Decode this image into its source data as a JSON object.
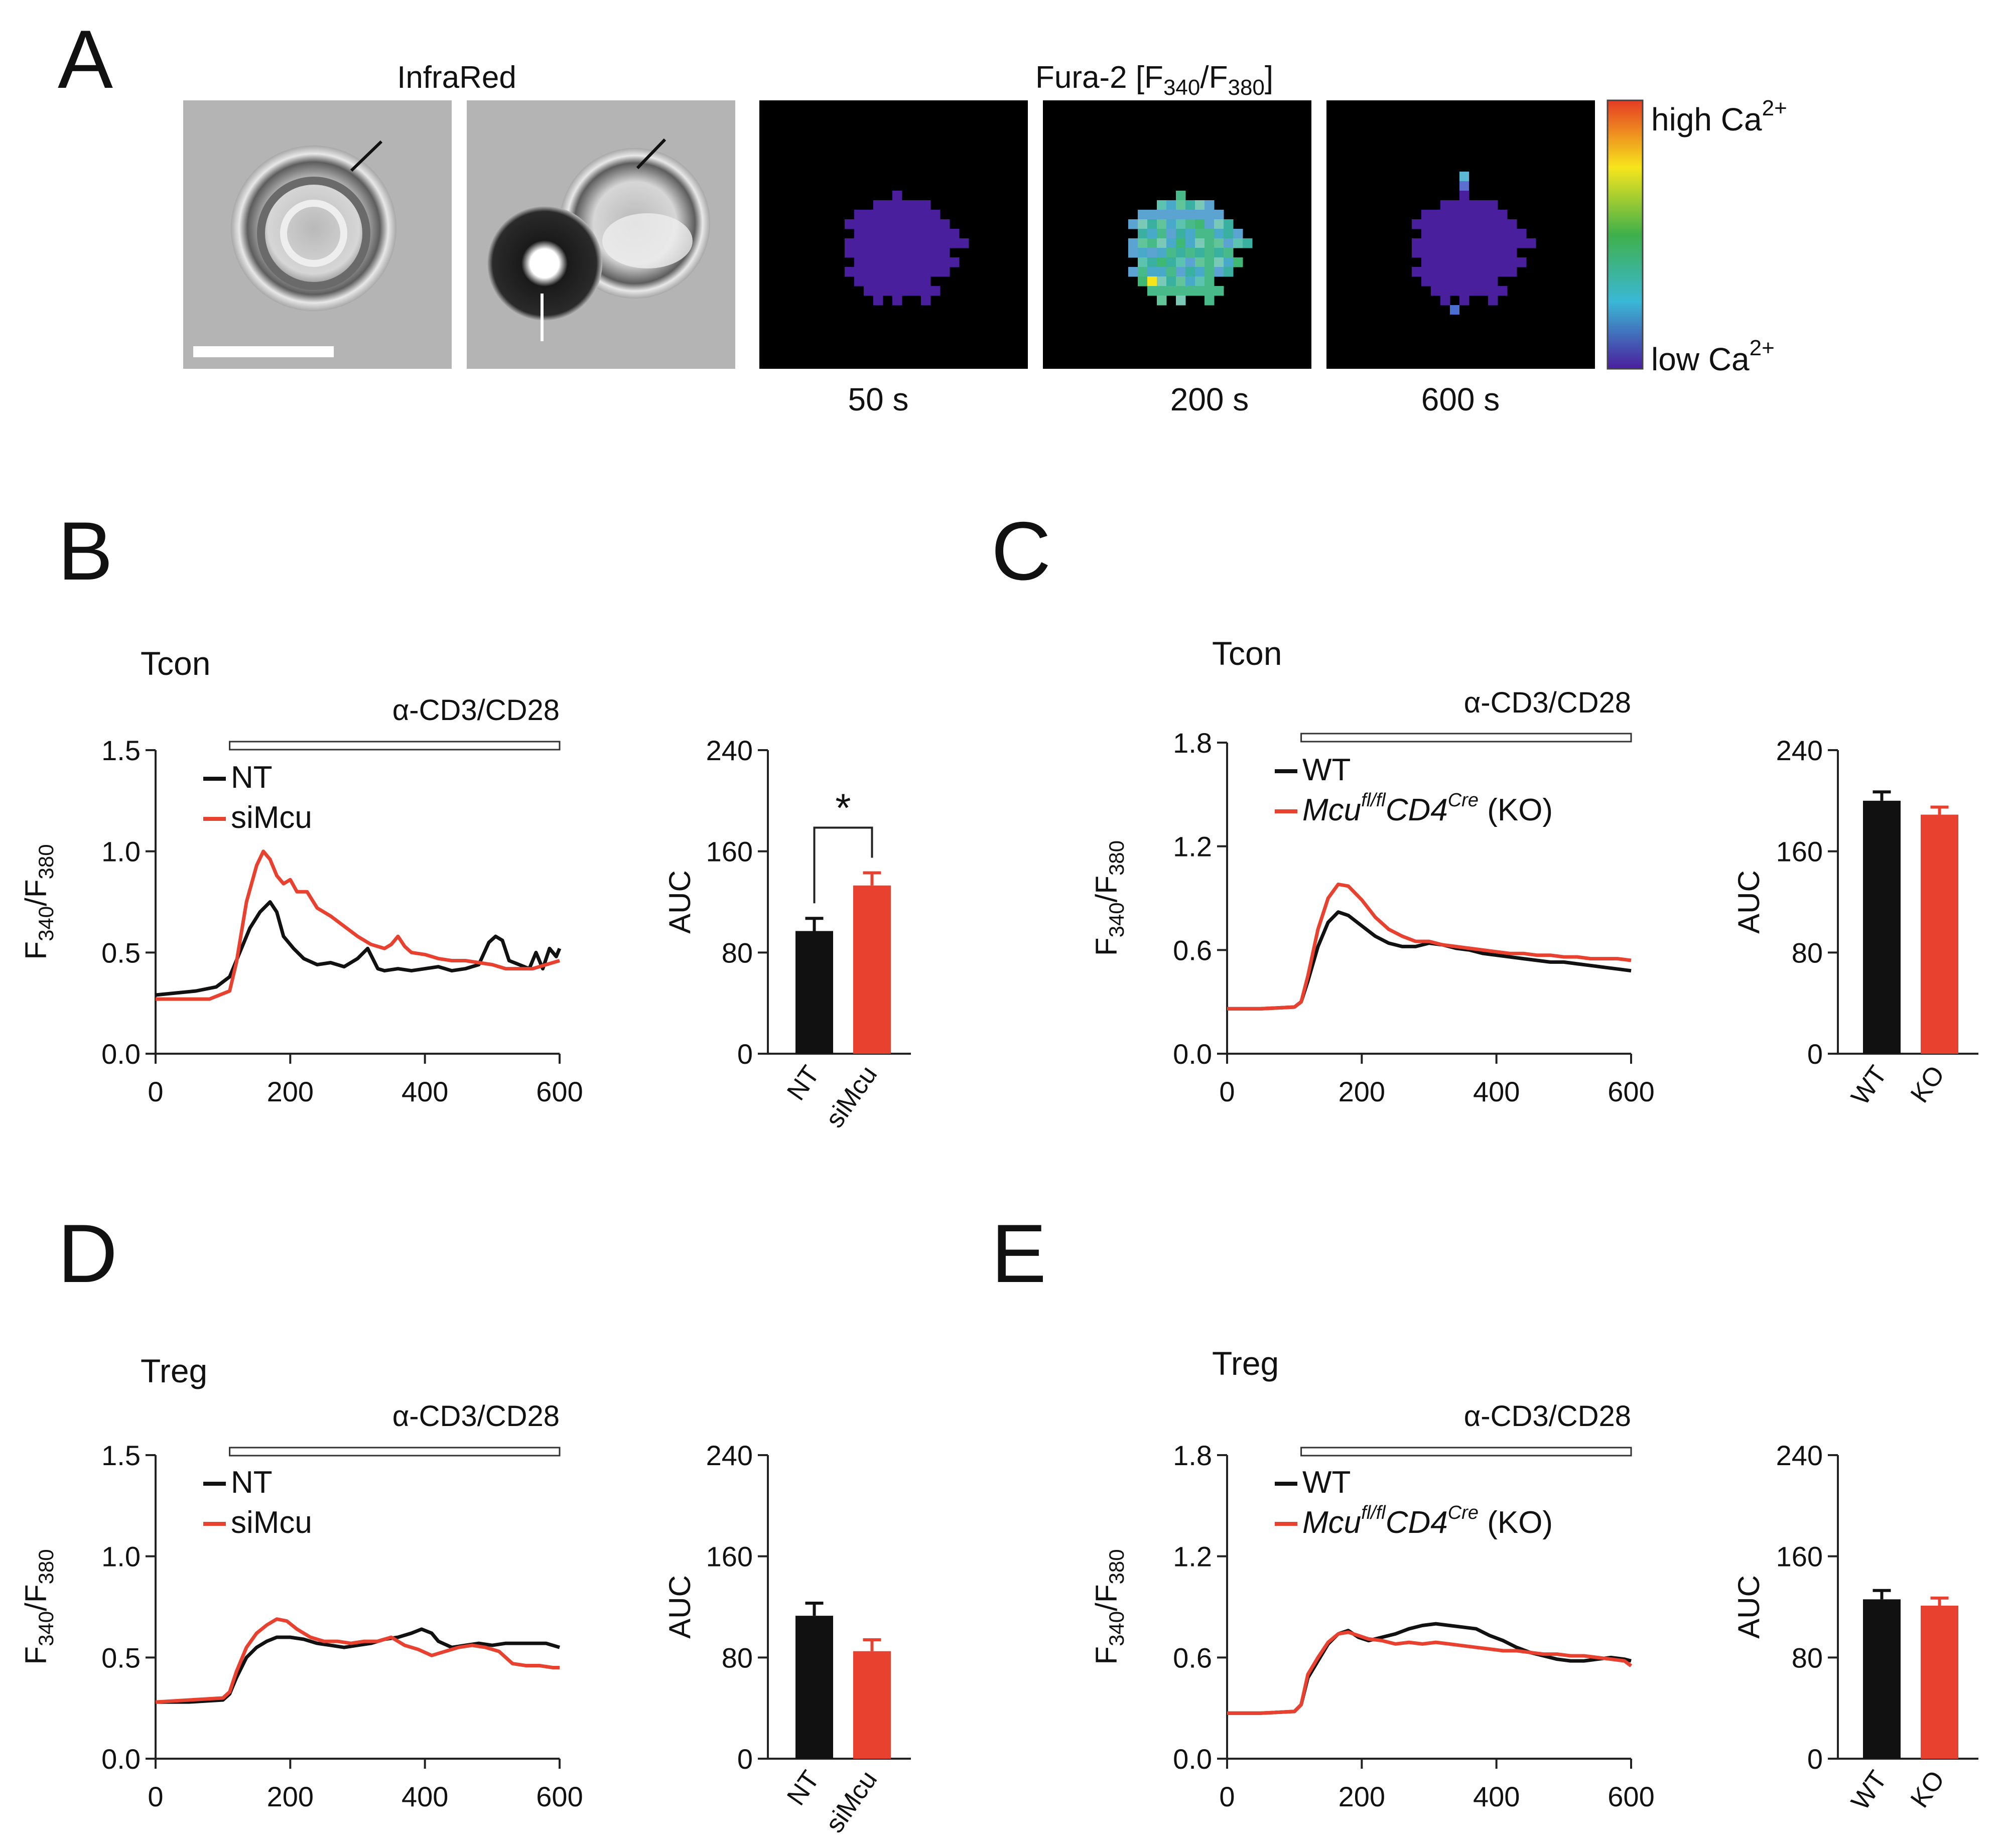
{
  "panel_a": {
    "letter": "A",
    "ir_title": "InfraRed",
    "fura_title": "Fura-2 [F",
    "fura_sub1": "340",
    "fura_slash": "/F",
    "fura_sub2": "380",
    "fura_close": "]",
    "times": [
      "50 s",
      "200 s",
      "600 s"
    ],
    "colorbar": {
      "high": "high Ca",
      "low": "low Ca",
      "sup": "2+"
    },
    "colors": {
      "purple": "#4a1f9e",
      "colorbar": [
        "#e53b24",
        "#f7e51c",
        "#3fb04a",
        "#3ab8d6",
        "#4a1f9e"
      ]
    }
  },
  "common": {
    "stim_label": "α-CD3/CD28",
    "ylabel_main": "F",
    "ylabel_sub1": "340",
    "ylabel_slash": "/F",
    "ylabel_sub2": "380",
    "auc_label": "AUC",
    "colors": {
      "control": "#111111",
      "treatment": "#e8412f"
    }
  },
  "chart_data": [
    {
      "id": "B-trace",
      "panel_letter": "B",
      "type": "line",
      "title": "Tcon",
      "xlim": [
        0,
        600
      ],
      "ylim": [
        0,
        1.5
      ],
      "xticks": [
        0,
        200,
        400,
        600
      ],
      "yticks": [
        "0.0",
        "0.5",
        "1.0",
        "1.5"
      ],
      "stimulus": {
        "label": "α-CD3/CD28",
        "start": 110,
        "end": 600
      },
      "legend": [
        {
          "label": "NT"
        },
        {
          "label": "siMcu"
        }
      ],
      "series": [
        {
          "name": "NT",
          "x": [
            0,
            30,
            60,
            90,
            110,
            125,
            140,
            155,
            170,
            180,
            190,
            205,
            220,
            240,
            260,
            280,
            300,
            315,
            330,
            340,
            360,
            380,
            400,
            420,
            440,
            460,
            480,
            495,
            505,
            515,
            525,
            540,
            555,
            565,
            575,
            585,
            595,
            600
          ],
          "y": [
            0.29,
            0.3,
            0.31,
            0.33,
            0.38,
            0.5,
            0.62,
            0.7,
            0.75,
            0.7,
            0.58,
            0.52,
            0.47,
            0.44,
            0.45,
            0.43,
            0.47,
            0.52,
            0.42,
            0.41,
            0.42,
            0.41,
            0.42,
            0.43,
            0.41,
            0.42,
            0.44,
            0.55,
            0.58,
            0.56,
            0.46,
            0.44,
            0.42,
            0.5,
            0.42,
            0.52,
            0.48,
            0.52
          ]
        },
        {
          "name": "siMcu",
          "x": [
            0,
            40,
            80,
            110,
            120,
            135,
            150,
            160,
            170,
            180,
            190,
            200,
            210,
            225,
            240,
            260,
            280,
            300,
            320,
            340,
            350,
            360,
            370,
            380,
            400,
            420,
            440,
            460,
            480,
            500,
            520,
            540,
            560,
            580,
            600
          ],
          "y": [
            0.27,
            0.27,
            0.27,
            0.31,
            0.45,
            0.75,
            0.93,
            1.0,
            0.96,
            0.88,
            0.84,
            0.86,
            0.8,
            0.8,
            0.72,
            0.68,
            0.63,
            0.58,
            0.54,
            0.52,
            0.54,
            0.58,
            0.53,
            0.5,
            0.49,
            0.47,
            0.46,
            0.46,
            0.45,
            0.44,
            0.42,
            0.42,
            0.42,
            0.44,
            0.46
          ]
        }
      ]
    },
    {
      "id": "B-auc",
      "type": "bar",
      "ylabel": "AUC",
      "ylim": [
        0,
        240
      ],
      "yticks": [
        "0",
        "80",
        "160",
        "240"
      ],
      "categories": [
        "NT",
        "siMcu"
      ],
      "values": [
        97,
        133
      ],
      "errors": [
        10,
        10
      ],
      "significance": "*"
    },
    {
      "id": "C-trace",
      "panel_letter": "C",
      "type": "line",
      "title": "Tcon",
      "xlim": [
        0,
        600
      ],
      "ylim": [
        0,
        1.8
      ],
      "xticks": [
        0,
        200,
        400,
        600
      ],
      "yticks": [
        "0.0",
        "0.6",
        "1.2",
        "1.8"
      ],
      "stimulus": {
        "label": "α-CD3/CD28",
        "start": 110,
        "end": 600
      },
      "legend": [
        {
          "label": "WT"
        },
        {
          "label": "Mcu",
          "sup": "fl/fl",
          "label2": "CD4",
          "sup2": "Cre",
          "suffix": " (KO)"
        }
      ],
      "series": [
        {
          "name": "WT",
          "x": [
            0,
            50,
            100,
            110,
            120,
            135,
            150,
            165,
            180,
            200,
            220,
            240,
            260,
            280,
            300,
            320,
            340,
            360,
            380,
            400,
            420,
            440,
            460,
            480,
            500,
            520,
            540,
            560,
            580,
            600
          ],
          "y": [
            0.26,
            0.26,
            0.27,
            0.3,
            0.42,
            0.62,
            0.76,
            0.82,
            0.8,
            0.74,
            0.68,
            0.64,
            0.62,
            0.62,
            0.64,
            0.63,
            0.61,
            0.6,
            0.58,
            0.57,
            0.56,
            0.55,
            0.54,
            0.53,
            0.53,
            0.52,
            0.51,
            0.5,
            0.49,
            0.48
          ]
        },
        {
          "name": "KO",
          "x": [
            0,
            50,
            100,
            110,
            120,
            135,
            150,
            165,
            180,
            200,
            220,
            240,
            260,
            280,
            300,
            320,
            340,
            360,
            380,
            400,
            420,
            440,
            460,
            480,
            500,
            520,
            540,
            560,
            580,
            600
          ],
          "y": [
            0.26,
            0.26,
            0.27,
            0.3,
            0.45,
            0.72,
            0.9,
            0.98,
            0.97,
            0.89,
            0.79,
            0.72,
            0.68,
            0.65,
            0.65,
            0.63,
            0.62,
            0.61,
            0.6,
            0.59,
            0.58,
            0.58,
            0.57,
            0.57,
            0.56,
            0.56,
            0.55,
            0.55,
            0.55,
            0.54
          ]
        }
      ]
    },
    {
      "id": "C-auc",
      "type": "bar",
      "ylabel": "AUC",
      "ylim": [
        0,
        240
      ],
      "yticks": [
        "0",
        "80",
        "160",
        "240"
      ],
      "categories": [
        "WT",
        "KO"
      ],
      "values": [
        200,
        189
      ],
      "errors": [
        7,
        6
      ]
    },
    {
      "id": "D-trace",
      "panel_letter": "D",
      "type": "line",
      "title": "Treg",
      "xlim": [
        0,
        600
      ],
      "ylim": [
        0,
        1.5
      ],
      "xticks": [
        0,
        200,
        400,
        600
      ],
      "yticks": [
        "0.0",
        "0.5",
        "1.0",
        "1.5"
      ],
      "stimulus": {
        "label": "α-CD3/CD28",
        "start": 110,
        "end": 600
      },
      "legend": [
        {
          "label": "NT"
        },
        {
          "label": "siMcu"
        }
      ],
      "series": [
        {
          "name": "NT",
          "x": [
            0,
            50,
            100,
            110,
            120,
            135,
            150,
            165,
            180,
            200,
            220,
            240,
            260,
            280,
            300,
            320,
            340,
            360,
            380,
            395,
            410,
            420,
            440,
            460,
            480,
            500,
            520,
            540,
            560,
            580,
            600
          ],
          "y": [
            0.28,
            0.28,
            0.29,
            0.32,
            0.4,
            0.5,
            0.55,
            0.58,
            0.6,
            0.6,
            0.59,
            0.57,
            0.56,
            0.55,
            0.56,
            0.57,
            0.59,
            0.6,
            0.62,
            0.64,
            0.62,
            0.58,
            0.55,
            0.56,
            0.57,
            0.56,
            0.57,
            0.57,
            0.57,
            0.57,
            0.55
          ]
        },
        {
          "name": "siMcu",
          "x": [
            0,
            50,
            100,
            110,
            120,
            135,
            150,
            165,
            180,
            195,
            210,
            230,
            250,
            270,
            290,
            310,
            330,
            350,
            370,
            390,
            410,
            430,
            450,
            470,
            490,
            510,
            530,
            550,
            570,
            590,
            600
          ],
          "y": [
            0.28,
            0.29,
            0.3,
            0.33,
            0.43,
            0.55,
            0.62,
            0.66,
            0.69,
            0.68,
            0.64,
            0.6,
            0.58,
            0.58,
            0.57,
            0.58,
            0.58,
            0.6,
            0.56,
            0.54,
            0.51,
            0.53,
            0.55,
            0.56,
            0.55,
            0.53,
            0.47,
            0.46,
            0.46,
            0.45,
            0.45
          ]
        }
      ]
    },
    {
      "id": "D-auc",
      "type": "bar",
      "ylabel": "AUC",
      "ylim": [
        0,
        240
      ],
      "yticks": [
        "0",
        "80",
        "160",
        "240"
      ],
      "categories": [
        "NT",
        "siMcu"
      ],
      "values": [
        113,
        85
      ],
      "errors": [
        10,
        9
      ]
    },
    {
      "id": "E-trace",
      "panel_letter": "E",
      "type": "line",
      "title": "Treg",
      "xlim": [
        0,
        600
      ],
      "ylim": [
        0,
        1.8
      ],
      "xticks": [
        0,
        200,
        400,
        600
      ],
      "yticks": [
        "0.0",
        "0.6",
        "1.2",
        "1.8"
      ],
      "stimulus": {
        "label": "α-CD3/CD28",
        "start": 110,
        "end": 600
      },
      "legend": [
        {
          "label": "WT"
        },
        {
          "label": "Mcu",
          "sup": "fl/fl",
          "label2": "CD4",
          "sup2": "Cre",
          "suffix": " (KO)"
        }
      ],
      "series": [
        {
          "name": "WT",
          "x": [
            0,
            50,
            100,
            110,
            120,
            135,
            150,
            165,
            180,
            195,
            210,
            230,
            250,
            270,
            290,
            310,
            330,
            350,
            370,
            390,
            410,
            430,
            450,
            470,
            490,
            510,
            530,
            550,
            570,
            590,
            600
          ],
          "y": [
            0.27,
            0.27,
            0.28,
            0.32,
            0.48,
            0.58,
            0.68,
            0.74,
            0.76,
            0.72,
            0.7,
            0.72,
            0.74,
            0.77,
            0.79,
            0.8,
            0.79,
            0.78,
            0.77,
            0.73,
            0.7,
            0.66,
            0.63,
            0.61,
            0.59,
            0.58,
            0.58,
            0.59,
            0.6,
            0.59,
            0.58
          ]
        },
        {
          "name": "KO",
          "x": [
            0,
            50,
            100,
            110,
            120,
            135,
            150,
            165,
            180,
            195,
            210,
            230,
            250,
            270,
            290,
            310,
            330,
            350,
            370,
            390,
            410,
            430,
            450,
            470,
            490,
            510,
            530,
            550,
            570,
            590,
            600
          ],
          "y": [
            0.27,
            0.27,
            0.28,
            0.32,
            0.5,
            0.6,
            0.69,
            0.74,
            0.75,
            0.73,
            0.71,
            0.7,
            0.68,
            0.69,
            0.68,
            0.69,
            0.68,
            0.67,
            0.66,
            0.65,
            0.64,
            0.64,
            0.63,
            0.62,
            0.62,
            0.61,
            0.61,
            0.6,
            0.59,
            0.58,
            0.55
          ]
        }
      ]
    },
    {
      "id": "E-auc",
      "type": "bar",
      "ylabel": "AUC",
      "ylim": [
        0,
        240
      ],
      "yticks": [
        "0",
        "80",
        "160",
        "240"
      ],
      "categories": [
        "WT",
        "KO"
      ],
      "values": [
        126,
        121
      ],
      "errors": [
        7,
        6
      ]
    }
  ]
}
